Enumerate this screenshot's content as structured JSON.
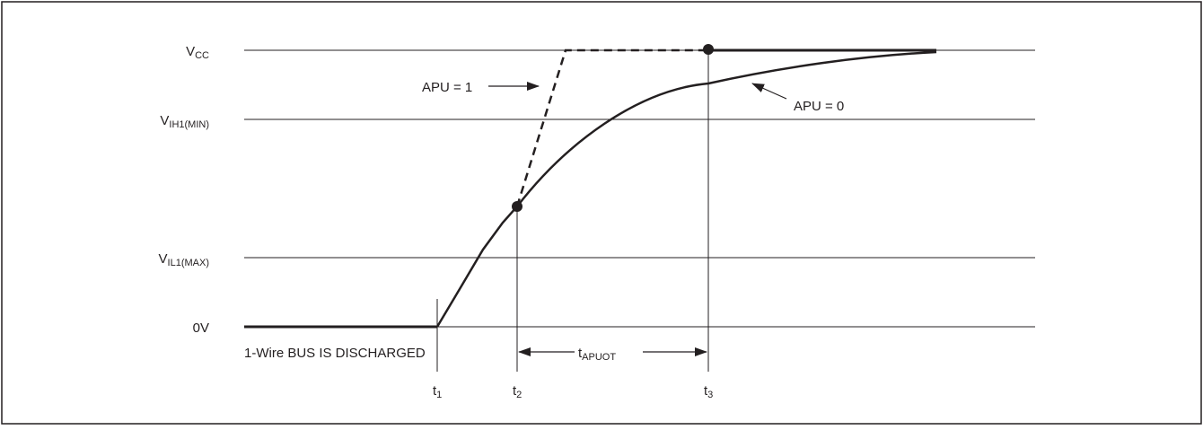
{
  "diagram": {
    "levels": [
      {
        "id": "vcc",
        "main": "V",
        "sub": "CC"
      },
      {
        "id": "vih",
        "main": "V",
        "sub": "IH1(MIN)"
      },
      {
        "id": "vil",
        "main": "V",
        "sub": "IL1(MAX)"
      },
      {
        "id": "zero",
        "main": "0V",
        "sub": ""
      }
    ],
    "times": [
      {
        "id": "t1",
        "main": "t",
        "sub": "1"
      },
      {
        "id": "t2",
        "main": "t",
        "sub": "2"
      },
      {
        "id": "t3",
        "main": "t",
        "sub": "3"
      }
    ],
    "labels": {
      "apu1": "APU = 1",
      "apu0": "APU = 0",
      "discharged": "1-Wire BUS IS DISCHARGED",
      "interval_main": "t",
      "interval_sub": "APUOT"
    },
    "colors": {
      "ink": "#231f20",
      "frame": "#231f20"
    }
  }
}
